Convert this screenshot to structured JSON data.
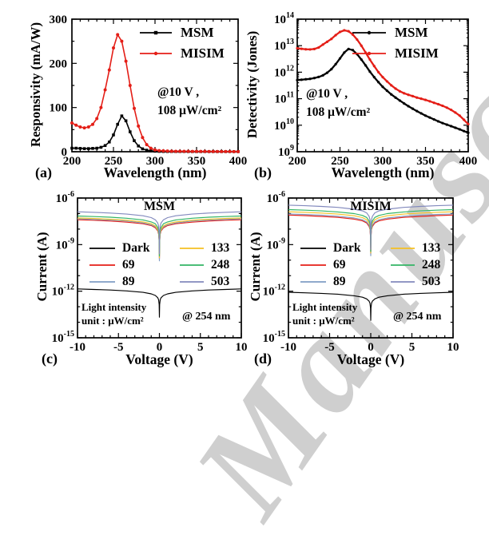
{
  "watermark": {
    "text": "Manuscript",
    "color": "#c7c7c7"
  },
  "chart_data": [
    {
      "id": "a",
      "type": "line",
      "tag": "(a)",
      "xlabel": "Wavelength (nm)",
      "ylabel": "Responsivity (mA/W)",
      "xlim": [
        200,
        400
      ],
      "ylim": [
        0,
        300
      ],
      "ylog": false,
      "x_ticks": [
        200,
        250,
        300,
        350,
        400
      ],
      "x_minor": 10,
      "y_ticks": [
        0,
        100,
        200,
        300
      ],
      "y_minor": 50,
      "lw": 1.6,
      "legend_pos": "top-right",
      "grid": false,
      "ann1": "@10 V ,",
      "ann2": "108 μW/cm²",
      "x": [
        200,
        205,
        210,
        215,
        220,
        225,
        230,
        235,
        240,
        245,
        250,
        255,
        260,
        265,
        270,
        275,
        280,
        285,
        290,
        295,
        300,
        305,
        310,
        315,
        320,
        325,
        330,
        335,
        340,
        345,
        350,
        355,
        360,
        365,
        370,
        375,
        380,
        385,
        390,
        395,
        400
      ],
      "series": [
        {
          "name": "MSM",
          "color": "#000000",
          "marker": "square",
          "y": [
            8,
            8,
            7.5,
            7,
            7,
            7.5,
            8,
            10,
            14,
            22,
            38,
            62,
            81,
            70,
            45,
            25,
            13,
            6.5,
            3.5,
            2,
            1.2,
            0.8,
            0.6,
            0.5,
            0.5,
            0.4,
            0.4,
            0.4,
            0.3,
            0.3,
            0.3,
            0.3,
            0.3,
            0.3,
            0.3,
            0.3,
            0.3,
            0.3,
            0.3,
            0.3,
            0.3
          ]
        },
        {
          "name": "MISIM",
          "color": "#e41e17",
          "marker": "circle",
          "y": [
            65,
            60,
            56,
            54,
            56,
            62,
            75,
            100,
            140,
            185,
            235,
            265,
            250,
            205,
            150,
            98,
            58,
            32,
            16,
            8,
            4,
            2.5,
            2,
            1.5,
            1.2,
            1,
            1,
            0.8,
            0.8,
            0.7,
            0.7,
            0.6,
            0.6,
            0.5,
            0.5,
            0.5,
            0.4,
            0.4,
            0.4,
            0.3,
            0.3
          ]
        }
      ]
    },
    {
      "id": "b",
      "type": "line",
      "tag": "(b)",
      "xlabel": "Wavelength (nm)",
      "ylabel": "Detectivity (Jones)",
      "xlim": [
        200,
        400
      ],
      "ylim": [
        1000000000.0,
        100000000000000.0
      ],
      "ylog": true,
      "log_minor": true,
      "x_ticks": [
        200,
        250,
        300,
        350,
        400
      ],
      "x_minor": 10,
      "y_exp": [
        9,
        10,
        11,
        12,
        13,
        14
      ],
      "lw": 2.3,
      "legend_pos": "top-right",
      "grid": false,
      "ann1": "@10 V ,",
      "ann2": "108 μW/cm²",
      "x": [
        200,
        205,
        210,
        215,
        220,
        225,
        230,
        235,
        240,
        245,
        250,
        255,
        260,
        265,
        270,
        275,
        280,
        285,
        290,
        295,
        300,
        305,
        310,
        315,
        320,
        325,
        330,
        335,
        340,
        345,
        350,
        355,
        360,
        365,
        370,
        375,
        380,
        385,
        390,
        395,
        400
      ],
      "series": [
        {
          "name": "MSM",
          "color": "#000000",
          "marker": "circle",
          "y": [
            500000000000.0,
            520000000000.0,
            540000000000.0,
            560000000000.0,
            600000000000.0,
            660000000000.0,
            760000000000.0,
            950000000000.0,
            1300000000000.0,
            2000000000000.0,
            3300000000000.0,
            5500000000000.0,
            7500000000000.0,
            6800000000000.0,
            4800000000000.0,
            3000000000000.0,
            1800000000000.0,
            1050000000000.0,
            650000000000.0,
            420000000000.0,
            280000000000.0,
            200000000000.0,
            145000000000.0,
            110000000000.0,
            85000000000.0,
            66000000000.0,
            52000000000.0,
            42000000000.0,
            34000000000.0,
            28000000000.0,
            23000000000.0,
            19500000000.0,
            16500000000.0,
            14000000000.0,
            12000000000.0,
            10500000000.0,
            9200000000.0,
            8000000000.0,
            7000000000.0,
            6000000000.0,
            5200000000.0
          ]
        },
        {
          "name": "MISIM",
          "color": "#e41e17",
          "marker": "circle",
          "y": [
            8000000000000.0,
            7600000000000.0,
            7300000000000.0,
            7200000000000.0,
            7500000000000.0,
            8500000000000.0,
            11000000000000.0,
            14000000000000.0,
            18000000000000.0,
            25000000000000.0,
            33000000000000.0,
            38000000000000.0,
            35000000000000.0,
            26000000000000.0,
            17000000000000.0,
            10000000000000.0,
            5500000000000.0,
            3000000000000.0,
            1700000000000.0,
            1000000000000.0,
            650000000000.0,
            450000000000.0,
            320000000000.0,
            240000000000.0,
            190000000000.0,
            160000000000.0,
            140000000000.0,
            125000000000.0,
            110000000000.0,
            100000000000.0,
            90000000000.0,
            80000000000.0,
            70000000000.0,
            62000000000.0,
            54000000000.0,
            46000000000.0,
            38000000000.0,
            30000000000.0,
            23000000000.0,
            16000000000.0,
            11000000000.0
          ]
        }
      ]
    },
    {
      "id": "c",
      "type": "line",
      "tag": "(c)",
      "title": "MSM",
      "xlabel": "Voltage (V)",
      "ylabel": "Current (A)",
      "xlim": [
        -10,
        10
      ],
      "ylim": [
        1e-15,
        1e-06
      ],
      "ylog": true,
      "log_minor": false,
      "x_ticks": [
        -10,
        -5,
        0,
        5,
        10
      ],
      "x_minor": 1,
      "y_exp": [
        -6,
        -9,
        -12,
        -15
      ],
      "lw": 1.15,
      "grid": false,
      "note1": "Light intensity",
      "note2": "unit : μW/cm²",
      "at_label": "@ 254 nm",
      "x": [
        -10,
        -8,
        -6,
        -4,
        -2,
        -1,
        -0.5,
        -0.2,
        -0.1,
        -0.03,
        0,
        0.03,
        0.1,
        0.2,
        0.5,
        1,
        2,
        4,
        6,
        8,
        10
      ],
      "series": [
        {
          "name": "Dark",
          "color": "#000000",
          "marker": "none",
          "y": [
            1.4e-12,
            1.3e-12,
            1.19e-12,
            1.05e-12,
            8.4e-13,
            6.7e-13,
            5.3e-13,
            3.8e-13,
            2.8e-13,
            1.4e-13,
            2.1e-14,
            1.4e-13,
            2.8e-13,
            3.8e-13,
            5.3e-13,
            6.7e-13,
            8.4e-13,
            1.05e-12,
            1.19e-12,
            1.3e-12,
            1.4e-12
          ]
        },
        {
          "name": "69",
          "color": "#e41e17",
          "marker": "none",
          "y": [
            4e-08,
            3.7e-08,
            3.3e-08,
            2.8e-08,
            2.2e-08,
            1.7e-08,
            1.2e-08,
            7.6e-09,
            4.8e-09,
            1.6e-09,
            1.2e-10,
            1.6e-09,
            4.8e-09,
            7.6e-09,
            1.2e-08,
            1.7e-08,
            2.2e-08,
            2.8e-08,
            3.3e-08,
            3.7e-08,
            4e-08
          ]
        },
        {
          "name": "89",
          "color": "#7f9dc4",
          "marker": "none",
          "y": [
            4.6e-08,
            4.2e-08,
            3.8e-08,
            3.3e-08,
            2.5e-08,
            1.9e-08,
            1.4e-08,
            8.7e-09,
            5.5e-09,
            1.8e-09,
            9e-11,
            1.8e-09,
            5.5e-09,
            8.7e-09,
            1.4e-08,
            1.9e-08,
            2.5e-08,
            3.3e-08,
            3.8e-08,
            4.2e-08,
            4.6e-08
          ]
        },
        {
          "name": "133",
          "color": "#f5c123",
          "marker": "none",
          "y": [
            5.2e-08,
            4.8e-08,
            4.3e-08,
            3.7e-08,
            2.9e-08,
            2.2e-08,
            1.6e-08,
            9.9e-09,
            6.2e-09,
            2.1e-09,
            1.4e-10,
            2.1e-09,
            6.2e-09,
            9.9e-09,
            1.6e-08,
            2.2e-08,
            2.9e-08,
            3.7e-08,
            4.3e-08,
            4.8e-08,
            5.2e-08
          ]
        },
        {
          "name": "248",
          "color": "#33b564",
          "marker": "none",
          "y": [
            7e-08,
            6.4e-08,
            5.8e-08,
            5e-08,
            3.9e-08,
            2.9e-08,
            2.2e-08,
            1.3e-08,
            8.4e-09,
            2.8e-09,
            1.8e-10,
            2.8e-09,
            8.4e-09,
            1.3e-08,
            2.2e-08,
            2.9e-08,
            3.9e-08,
            5e-08,
            5.8e-08,
            6.4e-08,
            7e-08
          ]
        },
        {
          "name": "503",
          "color": "#8289bd",
          "marker": "none",
          "y": [
            1.3e-07,
            1.2e-07,
            1.08e-07,
            9.2e-08,
            7.2e-08,
            5.5e-08,
            4e-08,
            2.5e-08,
            1.6e-08,
            5.2e-09,
            2.6e-10,
            5.2e-09,
            1.6e-08,
            2.5e-08,
            4e-08,
            5.5e-08,
            7.2e-08,
            9.2e-08,
            1.08e-07,
            1.2e-07,
            1.3e-07
          ]
        }
      ]
    },
    {
      "id": "d",
      "type": "line",
      "tag": "(d)",
      "title": "MISIM",
      "xlabel": "Voltage (V)",
      "ylabel": "Current (A)",
      "xlim": [
        -10,
        10
      ],
      "ylim": [
        1e-15,
        1e-06
      ],
      "ylog": true,
      "log_minor": false,
      "x_ticks": [
        -10,
        -5,
        0,
        5,
        10
      ],
      "x_minor": 1,
      "y_exp": [
        -6,
        -9,
        -12,
        -15
      ],
      "lw": 1.15,
      "grid": false,
      "note1": "Light intensity",
      "note2": "unit : μW/cm²",
      "at_label": "@ 254 nm",
      "x": [
        -10,
        -8,
        -6,
        -4,
        -2,
        -1,
        -0.5,
        -0.2,
        -0.1,
        -0.03,
        0,
        0.03,
        0.1,
        0.2,
        0.5,
        1,
        2,
        4,
        6,
        8,
        10
      ],
      "series": [
        {
          "name": "Dark",
          "color": "#000000",
          "marker": "none",
          "y": [
            8.5e-13,
            7.9e-13,
            7.2e-13,
            6.4e-13,
            5.1e-13,
            4.1e-13,
            3.2e-13,
            2.3e-13,
            1.7e-13,
            8.5e-14,
            1.3e-14,
            8.5e-14,
            1.7e-13,
            2.3e-13,
            3.2e-13,
            4.1e-13,
            5.1e-13,
            6.4e-13,
            7.2e-13,
            7.9e-13,
            8.5e-13
          ]
        },
        {
          "name": "69",
          "color": "#e41e17",
          "marker": "none",
          "y": [
            8e-08,
            7.4e-08,
            6.6e-08,
            5.7e-08,
            4.4e-08,
            3.4e-08,
            2.5e-08,
            1.5e-08,
            9.6e-09,
            3.2e-09,
            2.4e-10,
            3.2e-09,
            9.6e-09,
            1.5e-08,
            2.5e-08,
            3.4e-08,
            4.4e-08,
            5.7e-08,
            6.6e-08,
            7.4e-08,
            8e-08
          ]
        },
        {
          "name": "89",
          "color": "#7f9dc4",
          "marker": "none",
          "y": [
            9.5e-08,
            8.7e-08,
            7.9e-08,
            6.7e-08,
            5.2e-08,
            4e-08,
            2.9e-08,
            1.8e-08,
            1.1e-08,
            3.8e-09,
            1.9e-10,
            3.8e-09,
            1.1e-08,
            1.8e-08,
            2.9e-08,
            4e-08,
            5.2e-08,
            6.7e-08,
            7.9e-08,
            8.7e-08,
            9.5e-08
          ]
        },
        {
          "name": "133",
          "color": "#f5c123",
          "marker": "none",
          "y": [
            1.3e-07,
            1.2e-07,
            1.08e-07,
            9.2e-08,
            7.2e-08,
            5.5e-08,
            4e-08,
            2.5e-08,
            1.6e-08,
            5.2e-09,
            2.9e-10,
            5.2e-09,
            1.6e-08,
            2.5e-08,
            4e-08,
            5.5e-08,
            7.2e-08,
            9.2e-08,
            1.08e-07,
            1.2e-07,
            1.3e-07
          ]
        },
        {
          "name": "248",
          "color": "#33b564",
          "marker": "none",
          "y": [
            1.8e-07,
            1.66e-07,
            1.49e-07,
            1.28e-07,
            9.9e-08,
            7.6e-08,
            5.6e-08,
            3.4e-08,
            2.2e-08,
            7.2e-09,
            3.6e-10,
            7.2e-09,
            2.2e-08,
            3.4e-08,
            5.6e-08,
            7.6e-08,
            9.9e-08,
            1.28e-07,
            1.49e-07,
            1.66e-07,
            1.8e-07
          ]
        },
        {
          "name": "503",
          "color": "#8289bd",
          "marker": "none",
          "y": [
            3.5e-07,
            3.2e-07,
            2.9e-07,
            2.5e-07,
            1.9e-07,
            1.5e-07,
            1.1e-07,
            6.7e-08,
            4.2e-08,
            1.4e-08,
            5e-10,
            1.4e-08,
            4.2e-08,
            6.7e-08,
            1.1e-07,
            1.5e-07,
            1.9e-07,
            2.5e-07,
            2.9e-07,
            3.2e-07,
            3.5e-07
          ]
        }
      ]
    }
  ]
}
